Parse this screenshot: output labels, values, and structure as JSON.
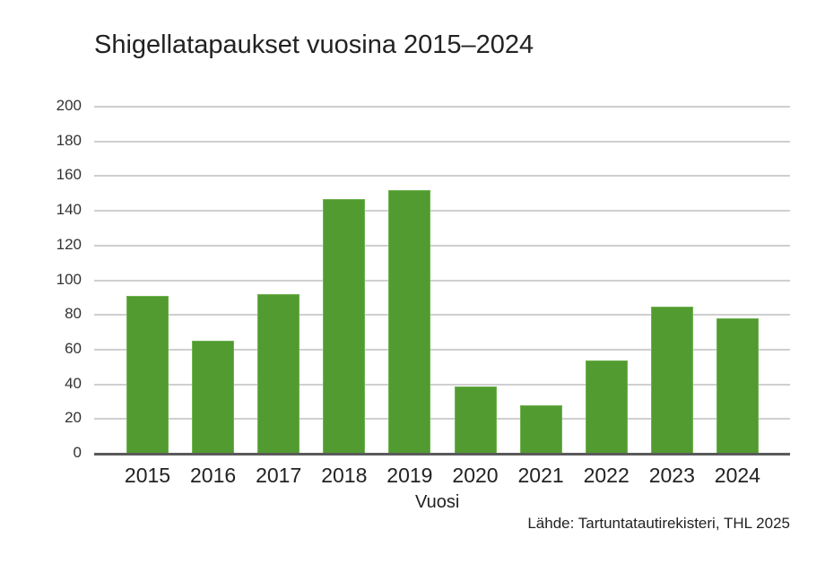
{
  "chart_data": {
    "type": "bar",
    "title": "Shigellatapaukset vuosina 2015–2024",
    "xlabel": "Vuosi",
    "ylabel": "",
    "categories": [
      "2015",
      "2016",
      "2017",
      "2018",
      "2019",
      "2020",
      "2021",
      "2022",
      "2023",
      "2024"
    ],
    "values": [
      91,
      65,
      92,
      147,
      152,
      39,
      28,
      54,
      85,
      78
    ],
    "ylim": [
      0,
      200
    ],
    "yticks": [
      0,
      20,
      40,
      60,
      80,
      100,
      120,
      140,
      160,
      180,
      200
    ],
    "grid": true,
    "legend": null,
    "bar_color": "#529b30",
    "source": "Lähde: Tartuntatautirekisteri, THL 2025"
  },
  "labels": {
    "title": "Shigellatapaukset vuosina 2015–2024",
    "xlabel": "Vuosi",
    "source": "Lähde: Tartuntatautirekisteri, THL 2025"
  }
}
